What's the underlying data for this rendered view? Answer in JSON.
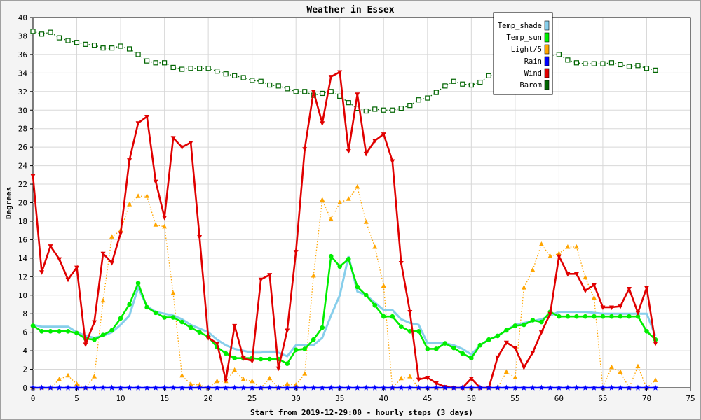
{
  "chart_data": {
    "type": "line",
    "title": "Weather in Essex",
    "xlabel": "Start from 2019-12-29:00 - hourly steps (3 days)",
    "ylabel": "Degrees",
    "xlim": [
      0,
      75
    ],
    "ylim": [
      0,
      40
    ],
    "x_ticks": [
      0,
      5,
      10,
      15,
      20,
      25,
      30,
      35,
      40,
      45,
      50,
      55,
      60,
      65,
      70,
      75
    ],
    "y_ticks": [
      0,
      2,
      4,
      6,
      8,
      10,
      12,
      14,
      16,
      18,
      20,
      22,
      24,
      26,
      28,
      30,
      32,
      34,
      36,
      38,
      40
    ],
    "grid": true,
    "legend_position": "top-right",
    "series": [
      {
        "name": "Temp_shade",
        "color": "#87ceeb",
        "style": "solid",
        "marker": "none",
        "x": [
          0,
          1,
          2,
          3,
          4,
          5,
          6,
          7,
          8,
          9,
          10,
          11,
          12,
          13,
          14,
          15,
          16,
          17,
          18,
          19,
          20,
          21,
          22,
          23,
          24,
          25,
          26,
          27,
          28,
          29,
          30,
          31,
          32,
          33,
          34,
          35,
          36,
          37,
          38,
          39,
          40,
          41,
          42,
          43,
          44,
          45,
          46,
          47,
          48,
          49,
          50,
          51,
          52,
          53,
          54,
          55,
          56,
          57,
          58,
          59,
          60,
          61,
          62,
          63,
          64,
          65,
          66,
          67,
          68,
          69,
          70,
          71
        ],
        "values": [
          6.8,
          6.6,
          6.6,
          6.6,
          6.6,
          6.0,
          5.6,
          5.4,
          5.6,
          6.0,
          6.8,
          7.8,
          10.8,
          8.8,
          8.2,
          8.0,
          7.8,
          7.4,
          6.8,
          6.4,
          6.0,
          5.2,
          4.6,
          4.2,
          4.0,
          3.8,
          3.8,
          3.9,
          3.8,
          3.4,
          4.6,
          4.6,
          4.6,
          5.4,
          7.8,
          10.0,
          14.2,
          10.4,
          10.0,
          9.2,
          8.4,
          8.4,
          7.4,
          7.0,
          6.8,
          4.8,
          4.8,
          4.8,
          4.6,
          4.2,
          3.6,
          4.6,
          5.2,
          5.6,
          6.2,
          6.8,
          7.0,
          7.2,
          7.4,
          7.8,
          8.2,
          8.2,
          8.2,
          8.2,
          8.1,
          8.0,
          8.0,
          8.0,
          8.0,
          8.0,
          8.0,
          5.6
        ]
      },
      {
        "name": "Temp_sun",
        "color": "#00ee00",
        "style": "solid",
        "marker": "circle",
        "x": [
          0,
          1,
          2,
          3,
          4,
          5,
          6,
          7,
          8,
          9,
          10,
          11,
          12,
          13,
          14,
          15,
          16,
          17,
          18,
          19,
          20,
          21,
          22,
          23,
          24,
          25,
          26,
          27,
          28,
          29,
          30,
          31,
          32,
          33,
          34,
          35,
          36,
          37,
          38,
          39,
          40,
          41,
          42,
          43,
          44,
          45,
          46,
          47,
          48,
          49,
          50,
          51,
          52,
          53,
          54,
          55,
          56,
          57,
          58,
          59,
          60,
          61,
          62,
          63,
          64,
          65,
          66,
          67,
          68,
          69,
          70,
          71
        ],
        "values": [
          6.7,
          6.1,
          6.1,
          6.1,
          6.1,
          5.9,
          5.3,
          5.2,
          5.7,
          6.2,
          7.5,
          9.0,
          11.3,
          8.7,
          8.1,
          7.6,
          7.6,
          7.1,
          6.5,
          6.0,
          5.5,
          4.4,
          3.7,
          3.2,
          3.2,
          3.2,
          3.1,
          3.1,
          3.1,
          2.6,
          4.1,
          4.2,
          5.2,
          6.5,
          14.2,
          13.1,
          13.9,
          10.9,
          10.0,
          8.9,
          7.7,
          7.7,
          6.6,
          6.1,
          6.1,
          4.2,
          4.2,
          4.8,
          4.3,
          3.7,
          3.2,
          4.6,
          5.2,
          5.6,
          6.2,
          6.7,
          6.8,
          7.3,
          7.1,
          8.2,
          7.7,
          7.7,
          7.7,
          7.7,
          7.7,
          7.7,
          7.7,
          7.7,
          7.7,
          7.7,
          6.1,
          5.2
        ]
      },
      {
        "name": "Light/5",
        "color": "#ffa500",
        "style": "dotted",
        "marker": "triangle",
        "x": [
          0,
          1,
          2,
          3,
          4,
          5,
          6,
          7,
          8,
          9,
          10,
          11,
          12,
          13,
          14,
          15,
          16,
          17,
          18,
          19,
          20,
          21,
          22,
          23,
          24,
          25,
          26,
          27,
          28,
          29,
          30,
          31,
          32,
          33,
          34,
          35,
          36,
          37,
          38,
          39,
          40,
          41,
          42,
          43,
          44,
          45,
          46,
          47,
          48,
          49,
          50,
          51,
          52,
          53,
          54,
          55,
          56,
          57,
          58,
          59,
          60,
          61,
          62,
          63,
          64,
          65,
          66,
          67,
          68,
          69,
          70,
          71
        ],
        "values": [
          0,
          0,
          0,
          0.9,
          1.3,
          0.4,
          0,
          1.2,
          9.4,
          16.3,
          17.0,
          19.8,
          20.7,
          20.7,
          17.6,
          17.4,
          10.2,
          1.3,
          0.4,
          0.3,
          0,
          0.7,
          0.7,
          1.9,
          0.9,
          0.7,
          0,
          1.0,
          0,
          0.4,
          0.3,
          1.5,
          12.1,
          20.3,
          18.2,
          20.0,
          20.4,
          21.7,
          17.9,
          15.2,
          11.0,
          0,
          1.0,
          1.2,
          0,
          0,
          0,
          0,
          0,
          0,
          0,
          0,
          0,
          0,
          1.7,
          1.1,
          10.8,
          12.7,
          15.5,
          14.2,
          14.5,
          15.2,
          15.2,
          11.9,
          9.7,
          0,
          2.2,
          1.7,
          0,
          2.3,
          0,
          0.8
        ]
      },
      {
        "name": "Rain",
        "color": "#0000ff",
        "style": "solid",
        "marker": "star",
        "x": [
          0,
          1,
          2,
          3,
          4,
          5,
          6,
          7,
          8,
          9,
          10,
          11,
          12,
          13,
          14,
          15,
          16,
          17,
          18,
          19,
          20,
          21,
          22,
          23,
          24,
          25,
          26,
          27,
          28,
          29,
          30,
          31,
          32,
          33,
          34,
          35,
          36,
          37,
          38,
          39,
          40,
          41,
          42,
          43,
          44,
          45,
          46,
          47,
          48,
          49,
          50,
          51,
          52,
          53,
          54,
          55,
          56,
          57,
          58,
          59,
          60,
          61,
          62,
          63,
          64,
          65,
          66,
          67,
          68,
          69,
          70,
          71
        ],
        "values": [
          0,
          0,
          0,
          0,
          0,
          0,
          0,
          0,
          0,
          0,
          0,
          0,
          0,
          0,
          0,
          0,
          0,
          0,
          0,
          0,
          0,
          0,
          0,
          0,
          0,
          0,
          0,
          0,
          0,
          0,
          0,
          0,
          0,
          0,
          0,
          0,
          0,
          0,
          0,
          0,
          0,
          0,
          0,
          0,
          0,
          0,
          0,
          0,
          0,
          0,
          0,
          0,
          0,
          0,
          0,
          0,
          0,
          0,
          0,
          0,
          0,
          0,
          0,
          0,
          0,
          0,
          0,
          0,
          0,
          0,
          0,
          0
        ]
      },
      {
        "name": "Wind",
        "color": "#e00000",
        "style": "solid",
        "marker": "triangle-down",
        "x": [
          0,
          1,
          2,
          3,
          4,
          5,
          6,
          7,
          8,
          9,
          10,
          11,
          12,
          13,
          14,
          15,
          16,
          17,
          18,
          19,
          20,
          21,
          22,
          23,
          24,
          25,
          26,
          27,
          28,
          29,
          30,
          31,
          32,
          33,
          34,
          35,
          36,
          37,
          38,
          39,
          40,
          41,
          42,
          43,
          44,
          45,
          46,
          47,
          48,
          49,
          50,
          51,
          52,
          53,
          54,
          55,
          56,
          57,
          58,
          59,
          60,
          61,
          62,
          63,
          64,
          65,
          66,
          67,
          68,
          69,
          70,
          71
        ],
        "values": [
          22.9,
          12.5,
          15.3,
          13.9,
          11.7,
          13.0,
          4.7,
          7.1,
          14.5,
          13.5,
          16.7,
          24.6,
          28.6,
          29.3,
          22.3,
          18.4,
          27.0,
          26.0,
          26.5,
          16.3,
          5.4,
          4.8,
          0.8,
          6.7,
          3.2,
          2.9,
          11.7,
          12.2,
          2.1,
          6.2,
          14.7,
          25.8,
          32.0,
          28.6,
          33.6,
          34.1,
          25.6,
          31.7,
          25.3,
          26.7,
          27.4,
          24.5,
          13.5,
          8.2,
          0.9,
          1.1,
          0.5,
          0.1,
          0,
          0,
          1.0,
          0,
          0,
          3.3,
          4.9,
          4.3,
          2.2,
          3.8,
          6.0,
          8.0,
          14.2,
          12.3,
          12.3,
          10.5,
          11.1,
          8.7,
          8.7,
          8.8,
          10.7,
          8.1,
          10.8,
          4.8
        ]
      },
      {
        "name": "Barom",
        "color": "#006400",
        "style": "dotted",
        "marker": "square",
        "x": [
          0,
          1,
          2,
          3,
          4,
          5,
          6,
          7,
          8,
          9,
          10,
          11,
          12,
          13,
          14,
          15,
          16,
          17,
          18,
          19,
          20,
          21,
          22,
          23,
          24,
          25,
          26,
          27,
          28,
          29,
          30,
          31,
          32,
          33,
          34,
          35,
          36,
          37,
          38,
          39,
          40,
          41,
          42,
          43,
          44,
          45,
          46,
          47,
          48,
          49,
          50,
          51,
          52,
          53,
          54,
          55,
          56,
          57,
          58,
          59,
          60,
          61,
          62,
          63,
          64,
          65,
          66,
          67,
          68,
          69,
          70,
          71
        ],
        "values": [
          38.5,
          38.2,
          38.4,
          37.8,
          37.5,
          37.3,
          37.1,
          37.0,
          36.7,
          36.7,
          36.9,
          36.6,
          36.0,
          35.3,
          35.1,
          35.1,
          34.6,
          34.4,
          34.5,
          34.5,
          34.5,
          34.2,
          33.9,
          33.7,
          33.5,
          33.2,
          33.1,
          32.7,
          32.6,
          32.3,
          32.0,
          32.0,
          31.6,
          31.8,
          32.0,
          31.5,
          30.8,
          30.2,
          29.9,
          30.1,
          30.0,
          30.0,
          30.2,
          30.5,
          31.1,
          31.3,
          31.9,
          32.6,
          33.1,
          32.8,
          32.7,
          33.0,
          33.7,
          33.7,
          34.0,
          34.7,
          35.4,
          35.6,
          35.7,
          35.9,
          36.0,
          35.4,
          35.1,
          35.0,
          35.0,
          35.0,
          35.1,
          34.9,
          34.7,
          34.8,
          34.5,
          34.3
        ]
      }
    ]
  }
}
